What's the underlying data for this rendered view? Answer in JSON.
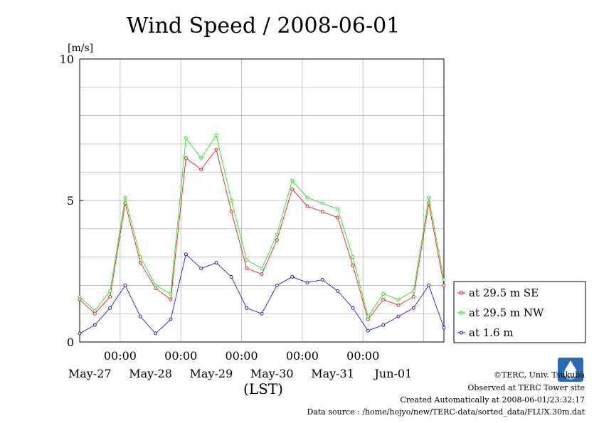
{
  "chart_data": {
    "type": "line",
    "title": "Wind Speed / 2008-06-01",
    "ylabel": "[m/s]",
    "xlabel": "(LST)",
    "ylim": [
      0,
      10
    ],
    "y_ticks": [
      "0",
      "5",
      "10"
    ],
    "x_time_labels": [
      "00:00",
      "00:00",
      "00:00",
      "00:00",
      "00:00"
    ],
    "x_day_labels": [
      "May-27",
      "May-28",
      "May-29",
      "May-30",
      "May-31",
      "Jun-01"
    ],
    "grid": true,
    "legend_position": "right",
    "x_start": "2008-05-26 08:00",
    "x_end": "2008-06-01 08:00",
    "x_step_hours": 6,
    "x": [
      "May-26 08:00",
      "May-26 14:00",
      "May-26 20:00",
      "May-27 02:00",
      "May-27 08:00",
      "May-27 14:00",
      "May-27 20:00",
      "May-28 02:00",
      "May-28 08:00",
      "May-28 14:00",
      "May-28 20:00",
      "May-29 02:00",
      "May-29 08:00",
      "May-29 14:00",
      "May-29 20:00",
      "May-30 02:00",
      "May-30 08:00",
      "May-30 14:00",
      "May-30 20:00",
      "May-31 02:00",
      "May-31 08:00",
      "May-31 14:00",
      "May-31 20:00",
      "Jun-01 02:00",
      "Jun-01 08:00"
    ],
    "series": [
      {
        "name": "at 29.5 m SE",
        "color": "#ff0000",
        "values": [
          1.5,
          1.0,
          1.6,
          4.9,
          2.8,
          1.9,
          1.5,
          6.5,
          6.1,
          6.8,
          4.6,
          2.6,
          2.4,
          3.6,
          5.4,
          4.8,
          4.6,
          4.4,
          2.7,
          0.8,
          1.5,
          1.3,
          1.6,
          4.9,
          2.0
        ]
      },
      {
        "name": "at 29.5 m NW",
        "color": "#00ee00",
        "values": [
          1.6,
          1.1,
          1.8,
          5.1,
          3.0,
          2.0,
          1.7,
          7.2,
          6.5,
          7.3,
          5.0,
          2.9,
          2.6,
          3.8,
          5.7,
          5.1,
          4.9,
          4.7,
          3.0,
          0.9,
          1.7,
          1.5,
          1.8,
          5.1,
          2.2
        ]
      },
      {
        "name": "at 1.6 m",
        "color": "#0000ff",
        "values": [
          0.3,
          0.6,
          1.2,
          2.0,
          0.9,
          0.3,
          0.8,
          3.1,
          2.6,
          2.8,
          2.3,
          1.2,
          1.0,
          2.0,
          2.3,
          2.1,
          2.2,
          1.8,
          1.2,
          0.4,
          0.6,
          0.9,
          1.2,
          2.0,
          0.5
        ]
      }
    ]
  },
  "footer": {
    "copyright": "©TERC, Univ. Tsukuba",
    "observed": "Observed at TERC Tower site",
    "created": "Created Automatically at 2008-06-01/23:32:17",
    "source": "Data source : /home/hojyo/new/TERC-data/sorted_data/FLUX.30m.dat",
    "logo_text": "TERC"
  }
}
